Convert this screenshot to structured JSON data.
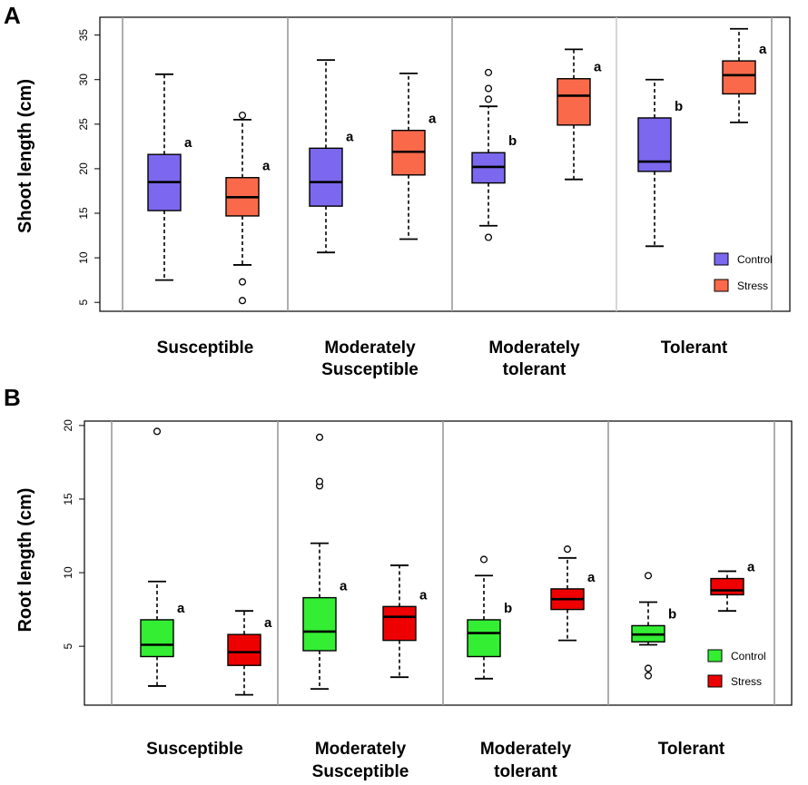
{
  "chart_data": [
    {
      "panel": "A",
      "type": "box",
      "ylabel": "Shoot length (cm)",
      "ylim": [
        4,
        37
      ],
      "yticks": [
        5,
        10,
        15,
        20,
        25,
        30,
        35
      ],
      "categories": [
        "Susceptible",
        "Moderately Susceptible",
        "Moderately tolerant",
        "Tolerant"
      ],
      "category_lines": [
        [
          "Susceptible"
        ],
        [
          "Moderately",
          "Susceptible"
        ],
        [
          "Moderately",
          "tolerant"
        ],
        [
          "Tolerant"
        ]
      ],
      "legend": [
        {
          "name": "Control",
          "color": "#7B68EE"
        },
        {
          "name": "Stress",
          "color": "#FA6A4A"
        }
      ],
      "series": [
        {
          "name": "Control",
          "color": "#7B68EE",
          "boxes": [
            {
              "min": 7.5,
              "q1": 15.3,
              "median": 18.5,
              "q3": 21.6,
              "max": 30.6,
              "outliers": [],
              "label": "a"
            },
            {
              "min": 10.6,
              "q1": 15.8,
              "median": 18.5,
              "q3": 22.3,
              "max": 32.2,
              "outliers": [],
              "label": "a"
            },
            {
              "min": 13.6,
              "q1": 18.4,
              "median": 20.2,
              "q3": 21.8,
              "max": 27.0,
              "outliers": [
                12.3,
                27.8,
                29.0,
                30.8
              ],
              "label": "b"
            },
            {
              "min": 11.3,
              "q1": 19.7,
              "median": 20.8,
              "q3": 25.7,
              "max": 30.0,
              "outliers": [],
              "label": "b"
            }
          ]
        },
        {
          "name": "Stress",
          "color": "#FA6A4A",
          "boxes": [
            {
              "min": 9.2,
              "q1": 14.7,
              "median": 16.8,
              "q3": 19.0,
              "max": 25.5,
              "outliers": [
                5.2,
                7.3,
                26.0
              ],
              "label": "a"
            },
            {
              "min": 12.1,
              "q1": 19.3,
              "median": 21.9,
              "q3": 24.3,
              "max": 30.7,
              "outliers": [],
              "label": "a"
            },
            {
              "min": 18.8,
              "q1": 24.9,
              "median": 28.2,
              "q3": 30.1,
              "max": 33.4,
              "outliers": [],
              "label": "a"
            },
            {
              "min": 25.2,
              "q1": 28.4,
              "median": 30.5,
              "q3": 32.1,
              "max": 35.7,
              "outliers": [],
              "label": "a"
            }
          ]
        }
      ]
    },
    {
      "panel": "B",
      "type": "box",
      "ylabel": "Root length (cm)",
      "ylim": [
        1.0,
        20.3
      ],
      "yticks": [
        5,
        10,
        15,
        20
      ],
      "categories": [
        "Susceptible",
        "Moderately Susceptible",
        "Moderately tolerant",
        "Tolerant"
      ],
      "category_lines": [
        [
          "Susceptible"
        ],
        [
          "Moderately",
          "Susceptible"
        ],
        [
          "Moderately",
          "tolerant"
        ],
        [
          "Tolerant"
        ]
      ],
      "legend": [
        {
          "name": "Control",
          "color": "#33EE33"
        },
        {
          "name": "Stress",
          "color": "#EE0000"
        }
      ],
      "series": [
        {
          "name": "Control",
          "color": "#33EE33",
          "boxes": [
            {
              "min": 2.3,
              "q1": 4.3,
              "median": 5.1,
              "q3": 6.8,
              "max": 9.4,
              "outliers": [
                19.6
              ],
              "label": "a"
            },
            {
              "min": 2.1,
              "q1": 4.7,
              "median": 6.0,
              "q3": 8.3,
              "max": 12.0,
              "outliers": [
                15.9,
                16.2,
                19.2
              ],
              "label": "a"
            },
            {
              "min": 2.8,
              "q1": 4.3,
              "median": 5.9,
              "q3": 6.8,
              "max": 9.8,
              "outliers": [
                10.9
              ],
              "label": "b"
            },
            {
              "min": 5.1,
              "q1": 5.3,
              "median": 5.8,
              "q3": 6.4,
              "max": 8.0,
              "outliers": [
                3.0,
                3.5,
                9.8
              ],
              "label": "b"
            }
          ]
        },
        {
          "name": "Stress",
          "color": "#EE0000",
          "boxes": [
            {
              "min": 1.7,
              "q1": 3.7,
              "median": 4.6,
              "q3": 5.8,
              "max": 7.4,
              "outliers": [],
              "label": "a"
            },
            {
              "min": 2.9,
              "q1": 5.4,
              "median": 7.0,
              "q3": 7.7,
              "max": 10.5,
              "outliers": [],
              "label": "a"
            },
            {
              "min": 5.4,
              "q1": 7.5,
              "median": 8.2,
              "q3": 8.9,
              "max": 11.0,
              "outliers": [
                11.6
              ],
              "label": "a"
            },
            {
              "min": 7.4,
              "q1": 8.5,
              "median": 8.8,
              "q3": 9.6,
              "max": 10.1,
              "outliers": [],
              "label": "a"
            }
          ]
        }
      ]
    }
  ]
}
